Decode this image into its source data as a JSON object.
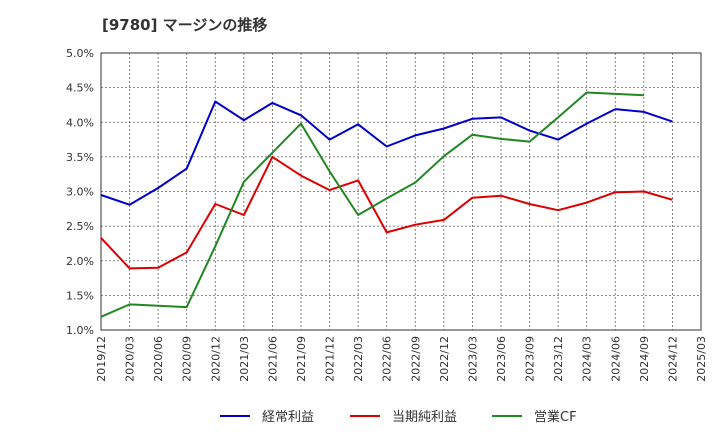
{
  "chart_data": {
    "type": "line",
    "title": "[9780]  マージンの推移",
    "x": [
      "2019/12",
      "2020/03",
      "2020/06",
      "2020/09",
      "2020/12",
      "2021/03",
      "2021/06",
      "2021/09",
      "2021/12",
      "2022/03",
      "2022/06",
      "2022/09",
      "2022/12",
      "2023/03",
      "2023/06",
      "2023/09",
      "2023/12",
      "2024/03",
      "2024/06",
      "2024/09",
      "2024/12",
      "2025/03"
    ],
    "ylim": [
      1.0,
      5.0
    ],
    "yticks": [
      "1.0%",
      "1.5%",
      "2.0%",
      "2.5%",
      "3.0%",
      "3.5%",
      "4.0%",
      "4.5%",
      "5.0%"
    ],
    "grid": true,
    "legend_position": "bottom",
    "series": [
      {
        "name": "経常利益",
        "color": "#0000cc",
        "values": [
          2.95,
          2.81,
          3.05,
          3.33,
          4.3,
          4.03,
          4.28,
          4.1,
          3.75,
          3.97,
          3.65,
          3.81,
          3.91,
          4.05,
          4.07,
          3.88,
          3.75,
          3.98,
          4.19,
          4.15,
          4.01,
          null
        ]
      },
      {
        "name": "当期純利益",
        "color": "#dd0000",
        "values": [
          2.33,
          1.89,
          1.9,
          2.12,
          2.82,
          2.66,
          3.5,
          3.23,
          3.02,
          3.16,
          2.41,
          2.52,
          2.59,
          2.91,
          2.94,
          2.82,
          2.73,
          2.84,
          2.99,
          3.0,
          2.88,
          null
        ]
      },
      {
        "name": "営業CF",
        "color": "#228822",
        "values": [
          1.19,
          1.37,
          1.35,
          1.33,
          2.21,
          3.14,
          3.56,
          3.98,
          3.29,
          2.66,
          2.9,
          3.13,
          3.51,
          3.82,
          3.76,
          3.72,
          4.07,
          4.43,
          4.41,
          4.39,
          null,
          null
        ]
      }
    ]
  }
}
